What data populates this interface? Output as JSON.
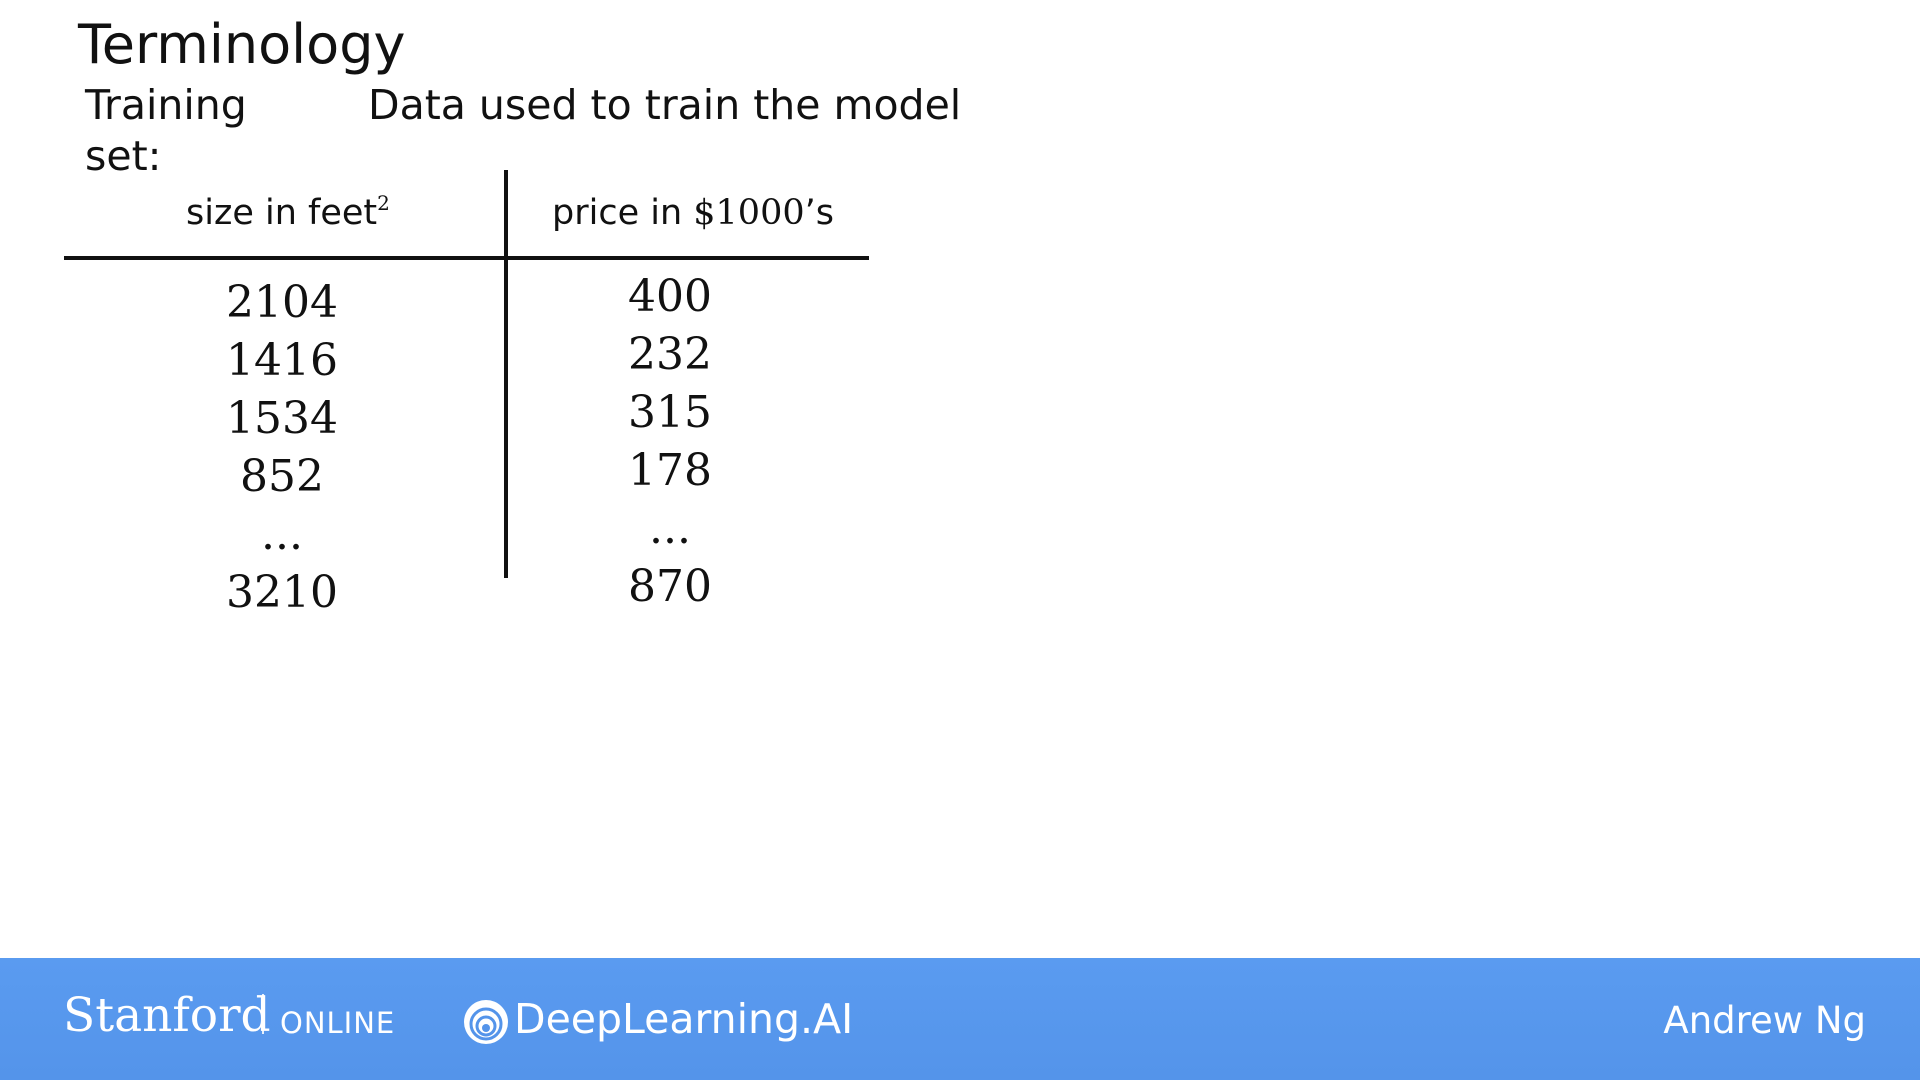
{
  "slide": {
    "title": "Terminology",
    "term_label": "Training set:",
    "term_definition": "Data used to train the model"
  },
  "table": {
    "headers": {
      "size_text": "size in feet",
      "size_superscript": "2",
      "price_text": "price in ",
      "price_unit": "$1000",
      "price_suffix": "’s"
    },
    "size_values": [
      "2104",
      "1416",
      "1534",
      "852",
      "...",
      "3210"
    ],
    "price_values": [
      "400",
      "232",
      "315",
      "178",
      "...",
      "870"
    ]
  },
  "footer": {
    "stanford": "Stanford",
    "online": "ONLINE",
    "deeplearning": "DeepLearning.AI",
    "presenter": "Andrew Ng",
    "background_color": "#5494ea",
    "logo_icon": "deeplearning-ai-logo-icon"
  }
}
